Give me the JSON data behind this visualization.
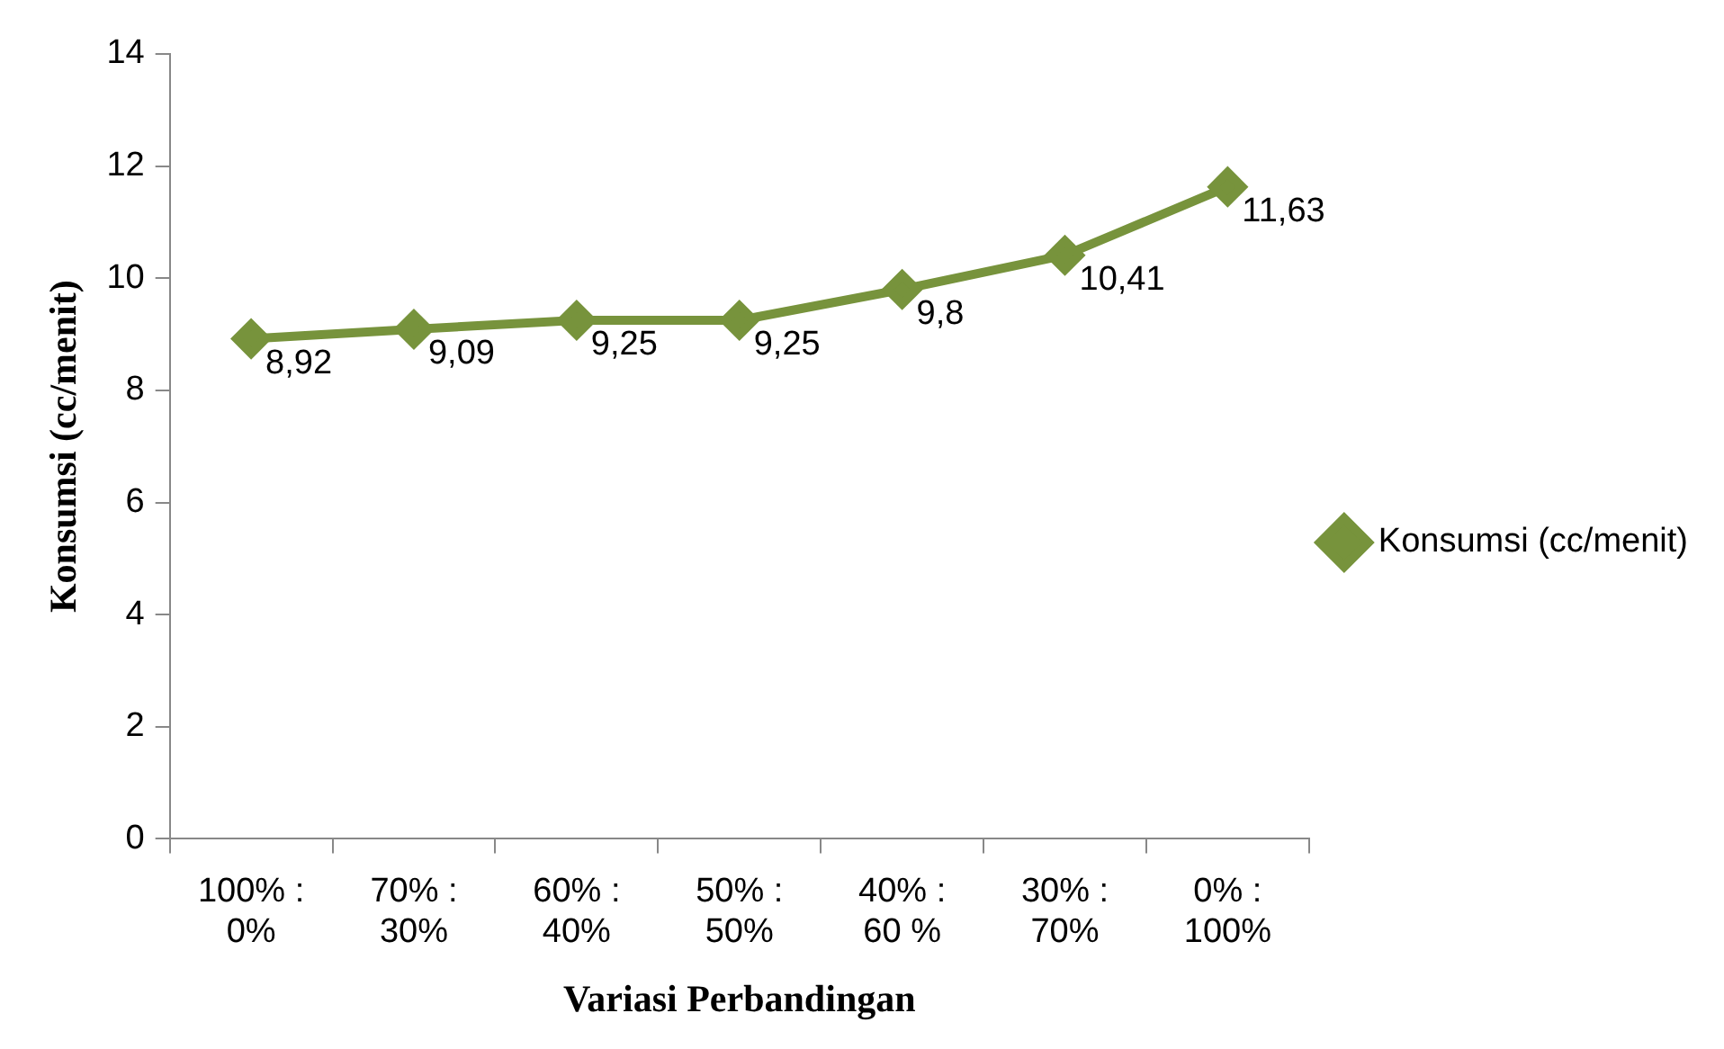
{
  "chart_data": {
    "type": "line",
    "xlabel": "Variasi Perbandingan",
    "ylabel": "Konsumsi (cc/menit)",
    "categories": [
      "100% : 0%",
      "70% : 30%",
      "60% : 40%",
      "50% : 50%",
      "40% : 60 %",
      "30% : 70%",
      "0% : 100%"
    ],
    "series": [
      {
        "name": "Konsumsi (cc/menit)",
        "color": "#77933c",
        "values": [
          8.92,
          9.09,
          9.25,
          9.25,
          9.8,
          10.41,
          11.63
        ],
        "value_labels": [
          "8,92",
          "9,09",
          "9,25",
          "9,25",
          "9,8",
          "10,41",
          "11,63"
        ]
      }
    ],
    "ylim": [
      0,
      14
    ],
    "yticks": [
      0,
      2,
      4,
      6,
      8,
      10,
      12,
      14
    ],
    "grid": false,
    "legend": "right",
    "marker": "diamond",
    "line_style": "solid"
  }
}
